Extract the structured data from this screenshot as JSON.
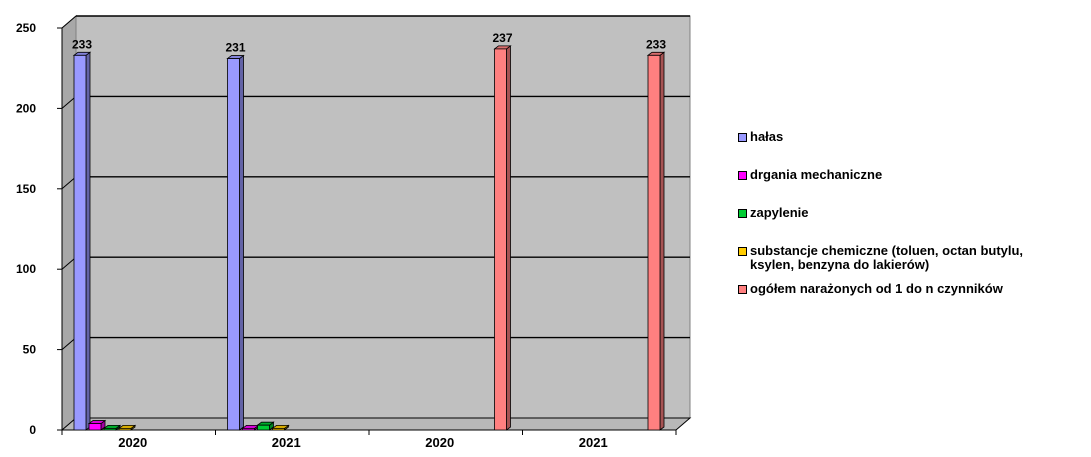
{
  "chart_data": {
    "type": "bar",
    "categories": [
      "2020",
      "2021",
      "2020",
      "2021"
    ],
    "ylim": [
      0,
      250
    ],
    "yticks": [
      0,
      50,
      100,
      150,
      200,
      250
    ],
    "grid": true,
    "legend_position": "right",
    "series": [
      {
        "name": "hałas",
        "color": "#9999ff",
        "values": [
          233,
          231,
          0,
          0
        ],
        "labels": [
          "233",
          "231",
          "",
          ""
        ]
      },
      {
        "name": "drgania mechaniczne",
        "color": "#ff00ff",
        "values": [
          4,
          1,
          0,
          0
        ],
        "labels": [
          "",
          "",
          "",
          ""
        ]
      },
      {
        "name": "zapylenie",
        "color": "#00cc33",
        "values": [
          1,
          3,
          0,
          0
        ],
        "labels": [
          "",
          "",
          "",
          ""
        ]
      },
      {
        "name": "substancje chemiczne (toluen, octan butylu, ksylen, benzyna do lakierów)",
        "color": "#ffcc00",
        "values": [
          1,
          1,
          0,
          0
        ],
        "labels": [
          "",
          "",
          "",
          ""
        ]
      },
      {
        "name": "ogółem narażonych od 1 do n czynników",
        "color": "#ff8080",
        "values": [
          0,
          0,
          237,
          233
        ],
        "labels": [
          "",
          "",
          "237",
          "233"
        ]
      }
    ],
    "title": "",
    "xlabel": "",
    "ylabel": ""
  },
  "legend": {
    "items": [
      {
        "label": "hałas",
        "color": "#9999ff"
      },
      {
        "label": "drgania mechaniczne",
        "color": "#ff00ff"
      },
      {
        "label": "zapylenie",
        "color": "#00cc33"
      },
      {
        "label": "substancje chemiczne (toluen, octan butylu,",
        "label2": "ksylen, benzyna do lakierów)",
        "color": "#ffcc00"
      },
      {
        "label": "ogółem narażonych od 1 do n czynników",
        "color": "#ff8080"
      }
    ]
  }
}
